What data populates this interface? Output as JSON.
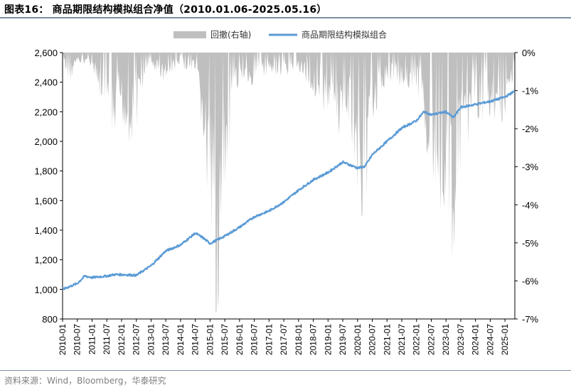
{
  "header": {
    "title": "图表16：   商品期限结构模拟组合净值（2010.01.06-2025.05.16）"
  },
  "footer": {
    "source": "资料来源：Wind，Bloomberg，华泰研究"
  },
  "colors": {
    "line": "#5b9bd5",
    "drawdown": "#bfbfbf",
    "rule": "#7b8ea3"
  },
  "chart_data": {
    "type": "line",
    "legend_position": "top-center",
    "grid": false,
    "legend": [
      {
        "name": "回撤(右轴)",
        "kind": "area",
        "axis": "right"
      },
      {
        "name": "商品期限结构模拟组合",
        "kind": "line",
        "axis": "left"
      }
    ],
    "y_left": {
      "min": 800,
      "max": 2600,
      "ticks": [
        "800",
        "1,000",
        "1,200",
        "1,400",
        "1,600",
        "1,800",
        "2,000",
        "2,200",
        "2,400",
        "2,600"
      ]
    },
    "y_right": {
      "min": -7,
      "max": 0,
      "ticks": [
        "0%",
        "-1%",
        "-2%",
        "-3%",
        "-4%",
        "-5%",
        "-6%",
        "-7%"
      ]
    },
    "x_ticks": [
      "2010-01",
      "2010-07",
      "2011-01",
      "2011-07",
      "2012-01",
      "2012-07",
      "2013-01",
      "2013-07",
      "2014-01",
      "2014-07",
      "2015-01",
      "2015-07",
      "2016-01",
      "2016-07",
      "2017-01",
      "2017-07",
      "2018-01",
      "2018-07",
      "2019-01",
      "2019-07",
      "2020-01",
      "2020-07",
      "2021-01",
      "2021-07",
      "2022-01",
      "2022-07",
      "2023-01",
      "2023-07",
      "2024-01",
      "2024-07",
      "2025-01"
    ],
    "x_range": [
      "2010-01",
      "2025-05"
    ],
    "nav": [
      [
        "2010-01",
        1000
      ],
      [
        "2010-07",
        1040
      ],
      [
        "2010-10",
        1090
      ],
      [
        "2011-01",
        1080
      ],
      [
        "2011-07",
        1090
      ],
      [
        "2011-10",
        1100
      ],
      [
        "2012-01",
        1100
      ],
      [
        "2012-07",
        1095
      ],
      [
        "2013-01",
        1160
      ],
      [
        "2013-07",
        1260
      ],
      [
        "2014-01",
        1300
      ],
      [
        "2014-07",
        1380
      ],
      [
        "2014-10",
        1350
      ],
      [
        "2015-01",
        1310
      ],
      [
        "2015-07",
        1360
      ],
      [
        "2016-01",
        1420
      ],
      [
        "2016-07",
        1490
      ],
      [
        "2017-01",
        1530
      ],
      [
        "2017-07",
        1590
      ],
      [
        "2018-01",
        1670
      ],
      [
        "2018-07",
        1740
      ],
      [
        "2019-01",
        1790
      ],
      [
        "2019-07",
        1860
      ],
      [
        "2020-01",
        1820
      ],
      [
        "2020-04",
        1830
      ],
      [
        "2020-07",
        1910
      ],
      [
        "2021-01",
        2000
      ],
      [
        "2021-07",
        2090
      ],
      [
        "2022-01",
        2140
      ],
      [
        "2022-04",
        2200
      ],
      [
        "2022-07",
        2180
      ],
      [
        "2023-01",
        2200
      ],
      [
        "2023-04",
        2160
      ],
      [
        "2023-07",
        2230
      ],
      [
        "2024-01",
        2250
      ],
      [
        "2024-07",
        2270
      ],
      [
        "2025-01",
        2300
      ],
      [
        "2025-05",
        2340
      ]
    ],
    "drawdown_pct": [
      [
        "2010-01",
        0
      ],
      [
        "2010-03",
        -0.8
      ],
      [
        "2010-06",
        -0.3
      ],
      [
        "2010-12",
        -0.2
      ],
      [
        "2011-03",
        -0.8
      ],
      [
        "2011-06",
        -1.3
      ],
      [
        "2011-09",
        -2.6
      ],
      [
        "2011-12",
        -1.2
      ],
      [
        "2012-03",
        -1.8
      ],
      [
        "2012-06",
        -2.0
      ],
      [
        "2012-09",
        -0.9
      ],
      [
        "2013-01",
        -0.3
      ],
      [
        "2013-06",
        -0.6
      ],
      [
        "2014-01",
        -0.3
      ],
      [
        "2014-07",
        -0.5
      ],
      [
        "2014-10",
        -1.8
      ],
      [
        "2015-01",
        -4.3
      ],
      [
        "2015-04",
        -5.7
      ],
      [
        "2015-07",
        -3.8
      ],
      [
        "2015-10",
        -1.5
      ],
      [
        "2016-01",
        -0.5
      ],
      [
        "2016-07",
        -0.8
      ],
      [
        "2017-01",
        -0.4
      ],
      [
        "2017-07",
        -0.6
      ],
      [
        "2018-01",
        -0.4
      ],
      [
        "2018-07",
        -0.9
      ],
      [
        "2019-01",
        -1.4
      ],
      [
        "2019-07",
        -1.9
      ],
      [
        "2019-10",
        -1.5
      ],
      [
        "2020-01",
        -3.1
      ],
      [
        "2020-04",
        -4.2
      ],
      [
        "2020-07",
        -1.4
      ],
      [
        "2021-01",
        -0.6
      ],
      [
        "2021-07",
        -0.7
      ],
      [
        "2022-01",
        -0.8
      ],
      [
        "2022-04",
        -1.3
      ],
      [
        "2022-07",
        -3.1
      ],
      [
        "2022-10",
        -3.2
      ],
      [
        "2023-01",
        -3.5
      ],
      [
        "2023-04",
        -4.4
      ],
      [
        "2023-07",
        -2.5
      ],
      [
        "2024-01",
        -1.3
      ],
      [
        "2024-07",
        -1.6
      ],
      [
        "2025-01",
        -1.4
      ],
      [
        "2025-04",
        -0.8
      ],
      [
        "2025-05",
        -0.2
      ]
    ]
  }
}
